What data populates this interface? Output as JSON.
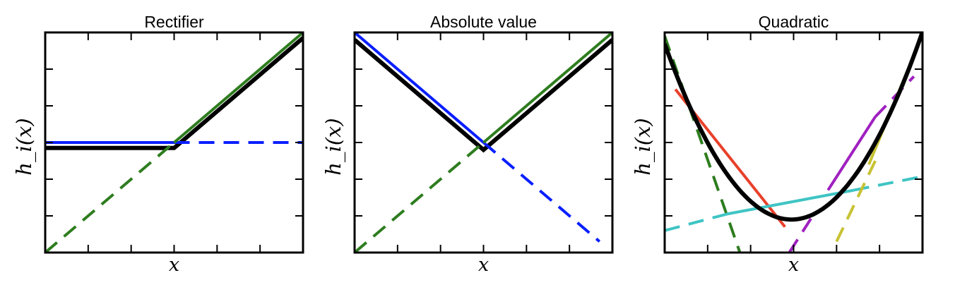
{
  "chart_data": [
    {
      "type": "line",
      "title": "Rectifier",
      "xlabel": "x",
      "ylabel": "h_i(x)",
      "xlim": [
        -3,
        3
      ],
      "ylim": [
        -3,
        3
      ],
      "grid": false,
      "series": [
        {
          "color": "#0a1fff",
          "dashed": false,
          "x": [
            -3,
            0
          ],
          "y": [
            0,
            0
          ]
        },
        {
          "color": "#0a1fff",
          "dashed": true,
          "x": [
            0,
            3
          ],
          "y": [
            0,
            0
          ]
        },
        {
          "color": "#2e7d1f",
          "dashed": true,
          "x": [
            -3,
            0
          ],
          "y": [
            -3,
            0
          ]
        },
        {
          "color": "#2e7d1f",
          "dashed": false,
          "x": [
            0,
            3
          ],
          "y": [
            0,
            3
          ]
        },
        {
          "color": "#000000",
          "dashed": false,
          "thick": true,
          "x": [
            -3,
            0,
            3
          ],
          "y": [
            -0.15,
            -0.15,
            2.85
          ]
        }
      ]
    },
    {
      "type": "line",
      "title": "Absolute value",
      "xlabel": "x",
      "ylabel": "h_i(x)",
      "xlim": [
        -3,
        3
      ],
      "ylim": [
        -3,
        3
      ],
      "grid": false,
      "series": [
        {
          "color": "#0a1fff",
          "dashed": false,
          "x": [
            -3,
            0
          ],
          "y": [
            3,
            0
          ]
        },
        {
          "color": "#0a1fff",
          "dashed": true,
          "x": [
            0,
            2.7
          ],
          "y": [
            0,
            -2.7
          ]
        },
        {
          "color": "#2e7d1f",
          "dashed": true,
          "x": [
            -3,
            0
          ],
          "y": [
            -3,
            0
          ]
        },
        {
          "color": "#2e7d1f",
          "dashed": false,
          "x": [
            0,
            3
          ],
          "y": [
            0,
            3
          ]
        },
        {
          "color": "#000000",
          "dashed": false,
          "thick": true,
          "x": [
            -3,
            0,
            3
          ],
          "y": [
            2.8,
            -0.2,
            2.8
          ]
        }
      ]
    },
    {
      "type": "line",
      "title": "Quadratic",
      "xlabel": "x",
      "ylabel": "h_i(x)",
      "xlim": [
        -3,
        3
      ],
      "ylim": [
        -3,
        3
      ],
      "grid": false,
      "series": [
        {
          "color": "#2e7d1f",
          "dashed": true,
          "x": [
            -3,
            -1.25
          ],
          "y": [
            2.9,
            -3
          ]
        },
        {
          "color": "#e8402a",
          "dashed": false,
          "x": [
            -2.75,
            -0.2
          ],
          "y": [
            1.45,
            -2.3
          ]
        },
        {
          "color": "#3fc4c4",
          "dashed": true,
          "x": [
            -3,
            -1.55
          ],
          "y": [
            -2.4,
            -1.95
          ]
        },
        {
          "color": "#3fc4c4",
          "dashed": false,
          "x": [
            -1.55,
            1.4
          ],
          "y": [
            -1.95,
            -1.3
          ]
        },
        {
          "color": "#3fc4c4",
          "dashed": true,
          "x": [
            1.4,
            2.9
          ],
          "y": [
            -1.3,
            -0.95
          ]
        },
        {
          "color": "#a020c0",
          "dashed": true,
          "x": [
            -0.1,
            0.5
          ],
          "y": [
            -3,
            -1.9
          ]
        },
        {
          "color": "#a020c0",
          "dashed": false,
          "x": [
            0.8,
            1.9
          ],
          "y": [
            -1.3,
            0.7
          ]
        },
        {
          "color": "#a020c0",
          "dashed": true,
          "x": [
            1.9,
            2.8
          ],
          "y": [
            0.7,
            1.8
          ]
        },
        {
          "color": "#c7c232",
          "dashed": true,
          "x": [
            1,
            1.9
          ],
          "y": [
            -2.7,
            -0.5
          ]
        },
        {
          "color": "#c7c232",
          "dashed": false,
          "x": [
            1.75,
            3
          ],
          "y": [
            -0.6,
            2.95
          ]
        },
        {
          "color": "#000000",
          "dashed": false,
          "thick": true,
          "fn": "0.55*(x+0.05)^2-2.1"
        }
      ]
    }
  ]
}
